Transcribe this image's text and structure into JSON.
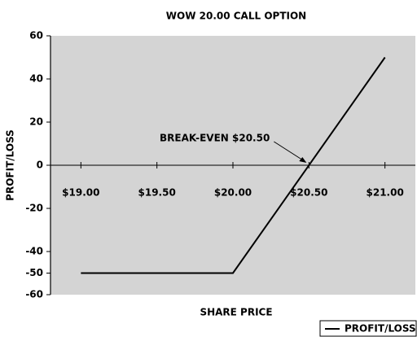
{
  "chart_data": {
    "type": "line",
    "title": "WOW 20.00 CALL OPTION",
    "x_label": "SHARE PRICE",
    "y_label": "PROFIT/LOSS",
    "x": [
      19,
      20,
      21
    ],
    "series": [
      {
        "name": "PROFIT/LOSS",
        "color": "#000000",
        "values": [
          -50,
          -50,
          50
        ]
      }
    ],
    "xlim": [
      18.8,
      21.2
    ],
    "xticks": [
      {
        "value": 19,
        "label": "$19.00"
      },
      {
        "value": 19.5,
        "label": "$19.50"
      },
      {
        "value": 20,
        "label": "$20.00"
      },
      {
        "value": 20.5,
        "label": "$20.50"
      },
      {
        "value": 21,
        "label": "$21.00"
      }
    ],
    "ylim": [
      -60,
      60
    ],
    "yticks": [
      60,
      40,
      20,
      0,
      -20,
      -40,
      -50,
      -60
    ],
    "annotation": {
      "text": "BREAK-EVEN $20.50",
      "x": 20.5,
      "y": 0
    },
    "grid": false,
    "legend": "bottom-right",
    "background": "#d4d4d4"
  }
}
